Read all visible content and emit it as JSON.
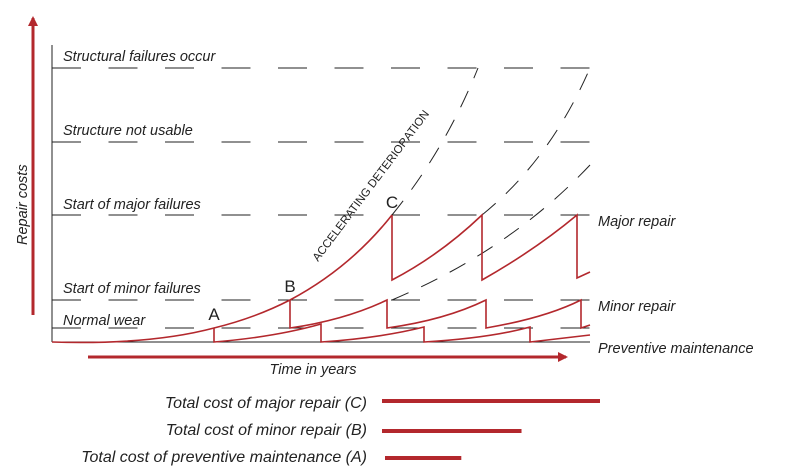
{
  "y_axis_label": "Repair costs",
  "x_axis_label": "Time in years",
  "levels": [
    "Structural failures occur",
    "Structure not usable",
    "Start of major failures",
    "Start of minor failures",
    "Normal wear"
  ],
  "curve_label": "ACCELERATING DETERIORATION",
  "points": [
    "A",
    "B",
    "C"
  ],
  "right_labels": [
    "Major repair",
    "Minor repair",
    "Preventive maintenance"
  ],
  "legend": [
    {
      "label": "Total cost of major repair (C)",
      "relative_cost": 1.0
    },
    {
      "label": "Total cost of minor repair (B)",
      "relative_cost": 0.64
    },
    {
      "label": "Total cost of preventive maintenance (A)",
      "relative_cost": 0.35
    }
  ],
  "colors": {
    "accent": "#b3282d",
    "line": "#222222"
  }
}
